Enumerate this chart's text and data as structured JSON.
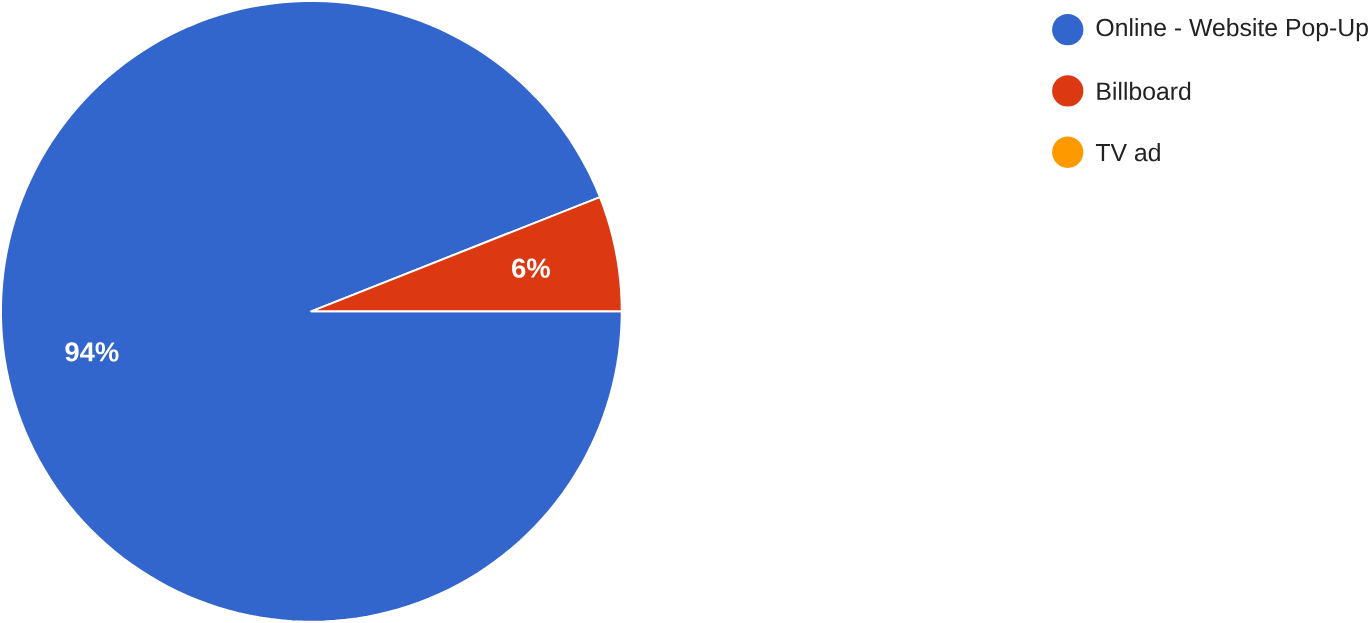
{
  "chart_data": {
    "type": "pie",
    "categories": [
      "Online - Website Pop-Up",
      "Billboard",
      "TV ad"
    ],
    "values": [
      94,
      6,
      0
    ],
    "colors": [
      "#3366cc",
      "#dc3912",
      "#ff9900"
    ],
    "value_labels": [
      "94%",
      "6%",
      null
    ],
    "legend": "top right"
  }
}
